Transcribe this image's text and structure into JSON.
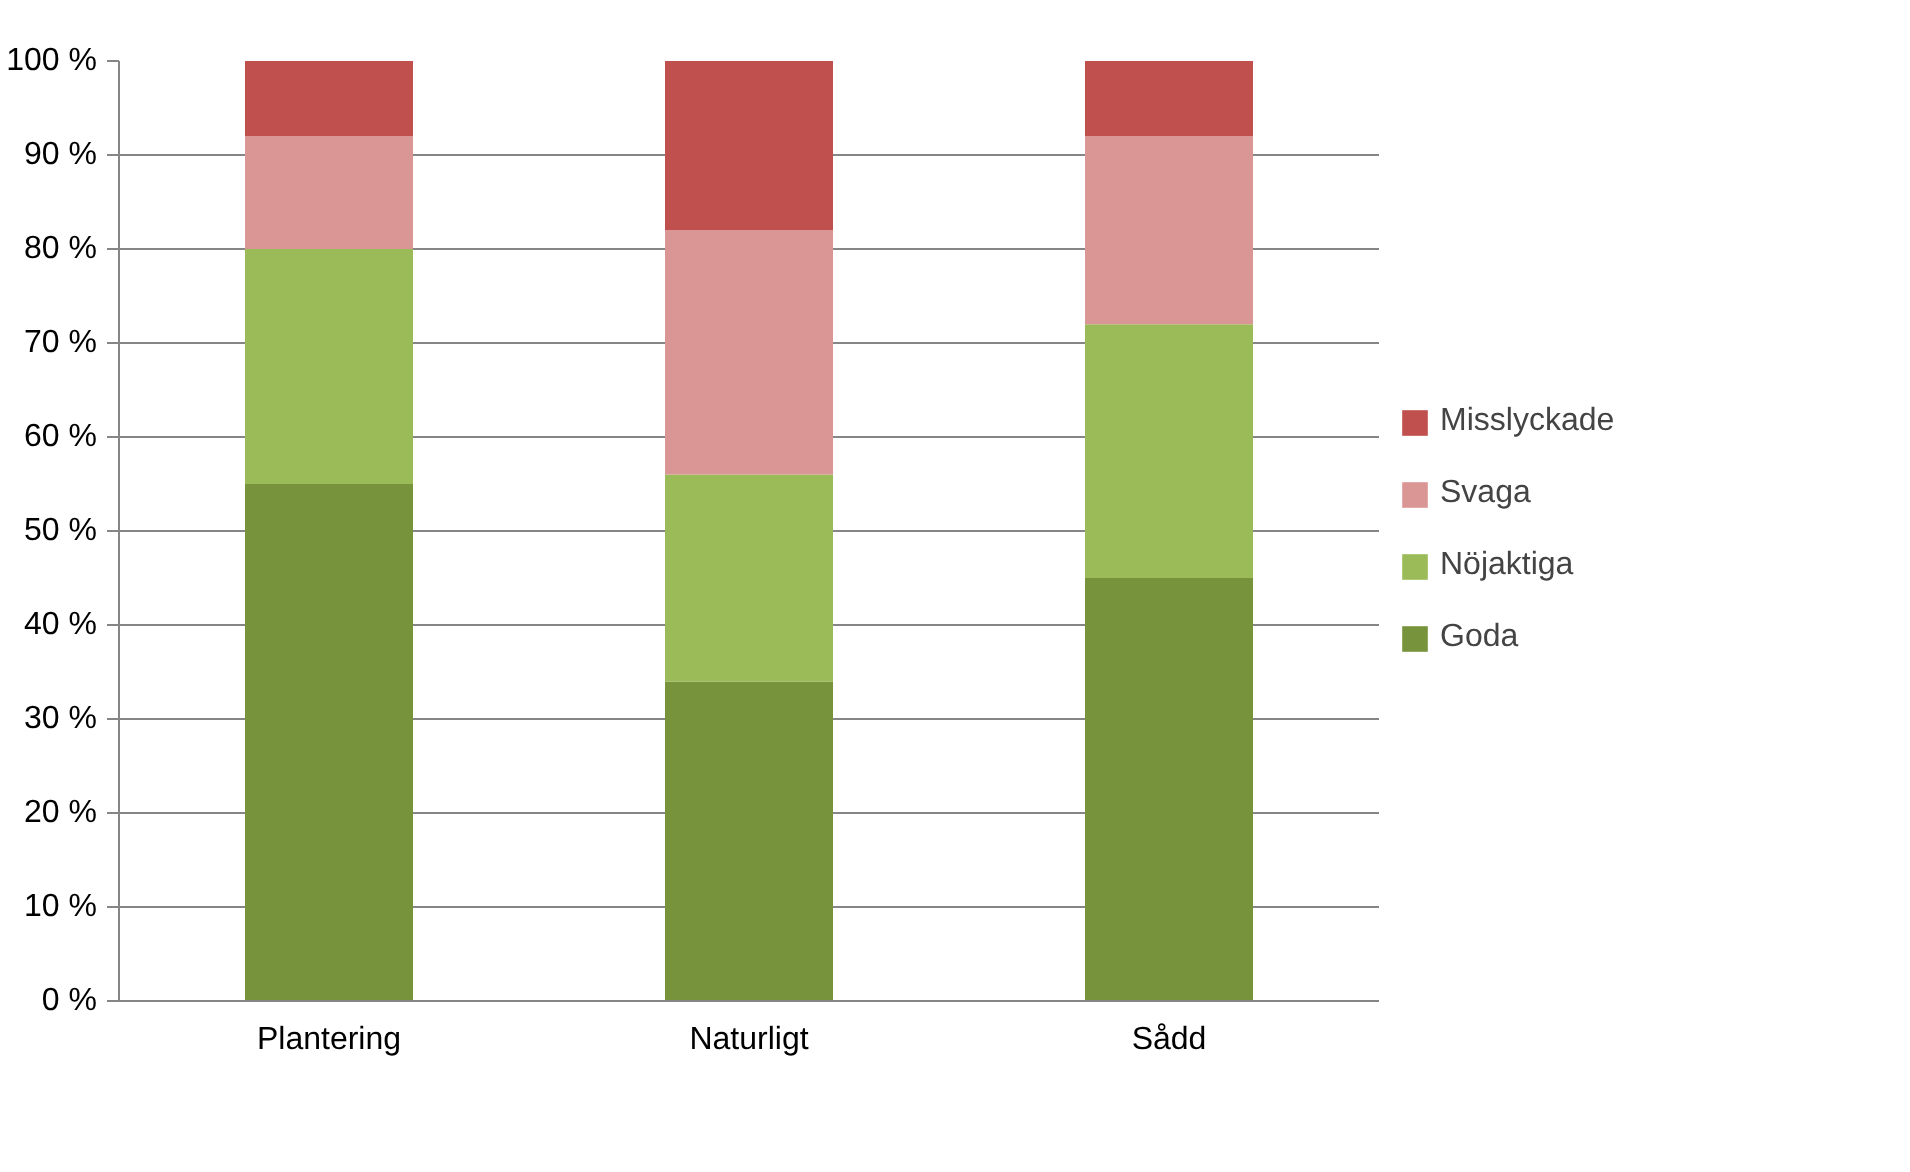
{
  "chart_data": {
    "type": "bar",
    "stacked": true,
    "categories": [
      "Plantering",
      "Naturligt",
      "Sådd"
    ],
    "series": [
      {
        "name": "Goda",
        "color": "#77933c",
        "values": [
          55,
          34,
          45
        ]
      },
      {
        "name": "Nöjaktiga",
        "color": "#9bbb59",
        "values": [
          25,
          22,
          27
        ]
      },
      {
        "name": "Svaga",
        "color": "#d99694",
        "values": [
          12,
          26,
          20
        ]
      },
      {
        "name": "Misslyckade",
        "color": "#c0504d",
        "values": [
          8,
          18,
          8
        ]
      }
    ],
    "ylim": [
      0,
      100
    ],
    "yticks": [
      {
        "value": 0,
        "label": "0 %"
      },
      {
        "value": 10,
        "label": "10 %"
      },
      {
        "value": 20,
        "label": "20 %"
      },
      {
        "value": 30,
        "label": "30 %"
      },
      {
        "value": 40,
        "label": "40 %"
      },
      {
        "value": 50,
        "label": "50 %"
      },
      {
        "value": 60,
        "label": "60 %"
      },
      {
        "value": 70,
        "label": "70 %"
      },
      {
        "value": 80,
        "label": "80 %"
      },
      {
        "value": 90,
        "label": "90 %"
      },
      {
        "value": 100,
        "label": "100 %"
      }
    ],
    "grid": "y",
    "legend": "right"
  }
}
